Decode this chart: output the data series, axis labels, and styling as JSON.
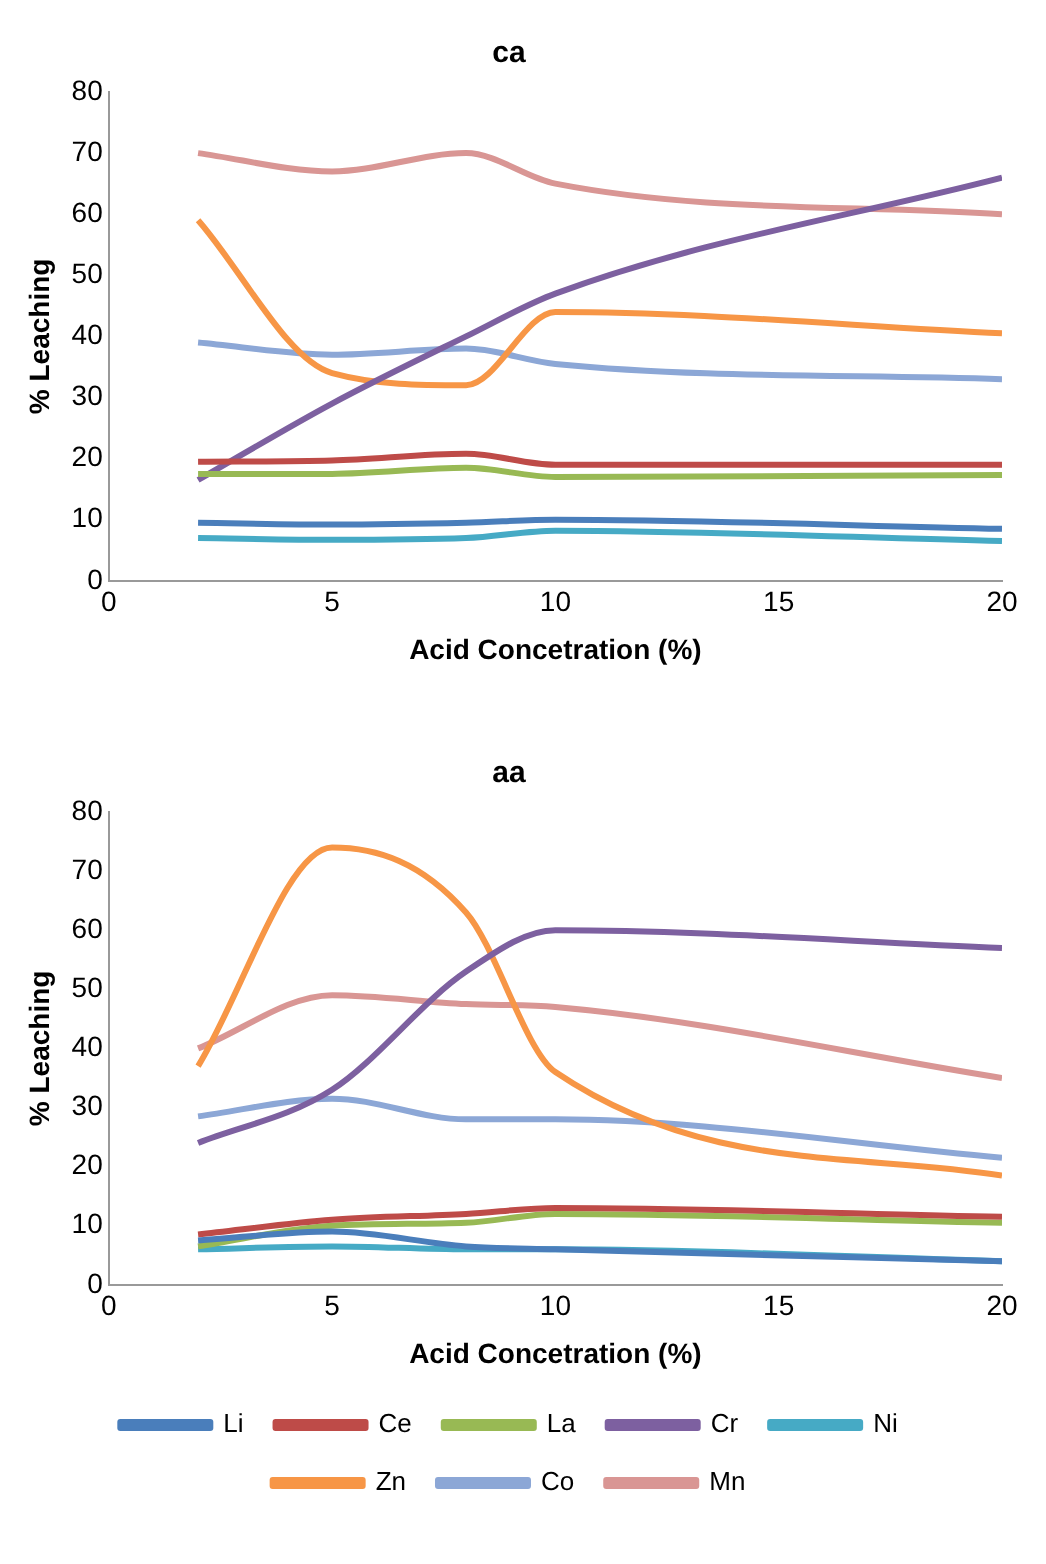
{
  "chart_data": [
    {
      "type": "line",
      "title": "ca",
      "xlabel": "Acid Concetration (%)",
      "ylabel": "% Leaching",
      "xlim": [
        0,
        20
      ],
      "xticks": [
        0,
        5,
        10,
        15,
        20
      ],
      "ylim": [
        0,
        80
      ],
      "yticks": [
        0,
        10,
        20,
        30,
        40,
        50,
        60,
        70,
        80
      ],
      "grid": false,
      "legend": false,
      "marker": "none",
      "line_style": "solid",
      "x": [
        2,
        5,
        8,
        10,
        20
      ],
      "series": [
        {
          "color": "#4a7ebb",
          "values": [
            9.5,
            9.2,
            9.5,
            10,
            8.5
          ]
        },
        {
          "color": "#be4b48",
          "values": [
            19.5,
            19.7,
            20.8,
            19,
            19
          ]
        },
        {
          "color": "#98b954",
          "values": [
            17.5,
            17.5,
            18.5,
            17,
            17.3
          ]
        },
        {
          "color": "#7d60a0",
          "values": [
            16.5,
            29,
            40,
            47,
            66
          ]
        },
        {
          "color": "#46aac5",
          "values": [
            7,
            6.7,
            7,
            8.2,
            6.5
          ]
        },
        {
          "color": "#f79646",
          "values": [
            59,
            34,
            32,
            44,
            40.5
          ]
        },
        {
          "color": "#8ca7d6",
          "values": [
            39,
            37,
            38,
            35.5,
            33
          ]
        },
        {
          "color": "#d99694",
          "values": [
            70,
            67,
            70,
            65,
            60
          ]
        }
      ]
    },
    {
      "type": "line",
      "title": "aa",
      "xlabel": "Acid Concetration (%)",
      "ylabel": "% Leaching",
      "xlim": [
        0,
        20
      ],
      "xticks": [
        0,
        5,
        10,
        15,
        20
      ],
      "ylim": [
        0,
        80
      ],
      "yticks": [
        0,
        10,
        20,
        30,
        40,
        50,
        60,
        70,
        80
      ],
      "grid": false,
      "legend": "bottom",
      "marker": "none",
      "line_style": "solid",
      "x": [
        2,
        5,
        8,
        10,
        20
      ],
      "series": [
        {
          "name": "Li",
          "color": "#4a7ebb",
          "values": [
            7.5,
            9,
            6.5,
            6,
            4
          ]
        },
        {
          "name": "Ce",
          "color": "#be4b48",
          "values": [
            8.5,
            11,
            12,
            13,
            11.5
          ]
        },
        {
          "name": "La",
          "color": "#98b954",
          "values": [
            6.5,
            10,
            10.5,
            12,
            10.5
          ]
        },
        {
          "name": "Cr",
          "color": "#7d60a0",
          "values": [
            24,
            33,
            53,
            60,
            57
          ]
        },
        {
          "name": "Ni",
          "color": "#46aac5",
          "values": [
            6,
            6.5,
            6,
            6,
            4
          ]
        },
        {
          "name": "Zn",
          "color": "#f79646",
          "values": [
            37,
            74,
            63,
            36,
            18.5
          ]
        },
        {
          "name": "Co",
          "color": "#8ca7d6",
          "values": [
            28.5,
            31.5,
            28,
            28,
            21.5
          ]
        },
        {
          "name": "Mn",
          "color": "#d99694",
          "values": [
            40,
            49,
            47.5,
            47,
            35
          ]
        }
      ]
    }
  ]
}
